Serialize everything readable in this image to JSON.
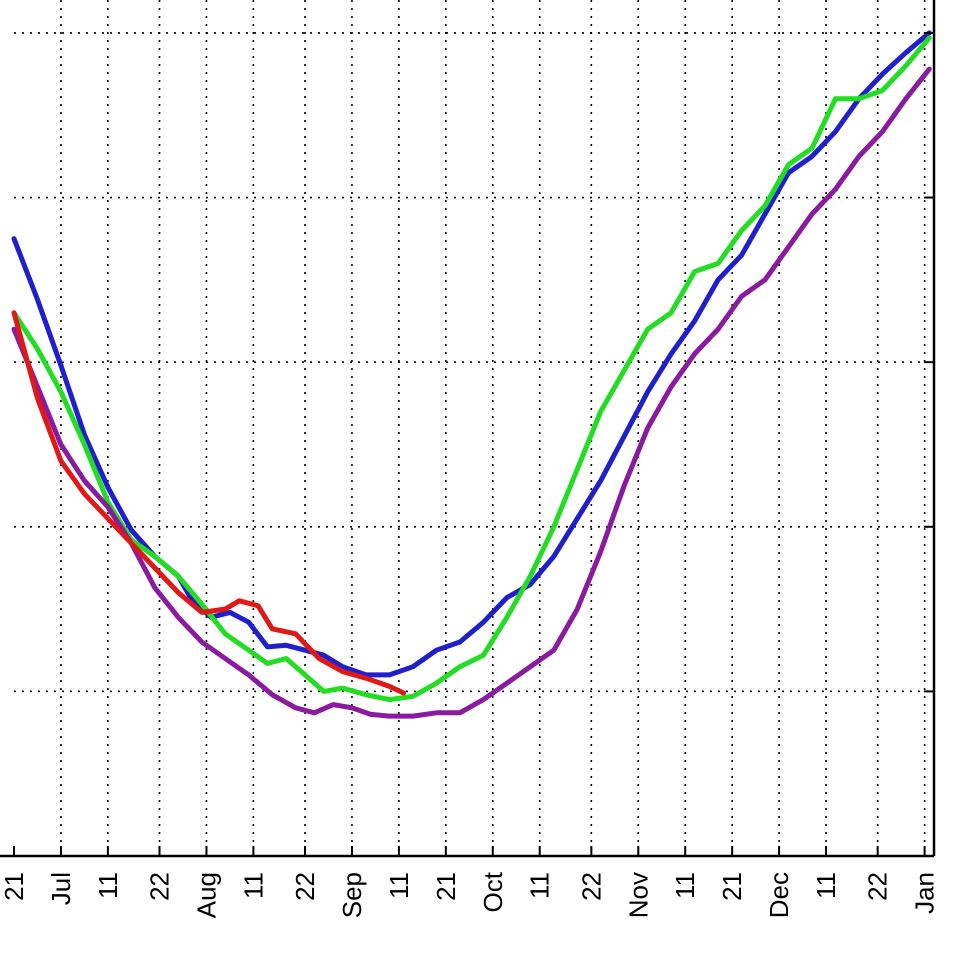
{
  "chart_data": {
    "type": "line",
    "title": "",
    "xlabel": "",
    "ylabel": "",
    "x_ticks": [
      {
        "day": 0,
        "label": "21"
      },
      {
        "day": 10,
        "label": "Jul"
      },
      {
        "day": 20,
        "label": "11"
      },
      {
        "day": 31,
        "label": "22"
      },
      {
        "day": 41,
        "label": "Aug"
      },
      {
        "day": 51,
        "label": "11"
      },
      {
        "day": 62,
        "label": "22"
      },
      {
        "day": 72,
        "label": "Sep"
      },
      {
        "day": 82,
        "label": "11"
      },
      {
        "day": 92,
        "label": "21"
      },
      {
        "day": 102,
        "label": "Oct"
      },
      {
        "day": 112,
        "label": "11"
      },
      {
        "day": 123,
        "label": "22"
      },
      {
        "day": 133,
        "label": "Nov"
      },
      {
        "day": 143,
        "label": "11"
      },
      {
        "day": 153,
        "label": "21"
      },
      {
        "day": 163,
        "label": "Dec"
      },
      {
        "day": 173,
        "label": "11"
      },
      {
        "day": 184,
        "label": "22"
      },
      {
        "day": 194,
        "label": "Jan"
      }
    ],
    "xlim": [
      0,
      196
    ],
    "ylim": [
      0,
      5.2
    ],
    "y_ticks": [
      1,
      2,
      3,
      4,
      5
    ],
    "grid": true,
    "series": [
      {
        "color": "#1f1fcc",
        "points": [
          [
            0,
            3.75
          ],
          [
            5,
            3.38
          ],
          [
            10,
            2.98
          ],
          [
            15,
            2.56
          ],
          [
            20,
            2.24
          ],
          [
            25,
            1.98
          ],
          [
            30,
            1.82
          ],
          [
            35,
            1.7
          ],
          [
            38,
            1.55
          ],
          [
            42,
            1.45
          ],
          [
            46,
            1.48
          ],
          [
            50,
            1.42
          ],
          [
            54,
            1.27
          ],
          [
            58,
            1.28
          ],
          [
            62,
            1.25
          ],
          [
            66,
            1.22
          ],
          [
            70,
            1.15
          ],
          [
            75,
            1.1
          ],
          [
            80,
            1.1
          ],
          [
            85,
            1.15
          ],
          [
            90,
            1.25
          ],
          [
            95,
            1.3
          ],
          [
            100,
            1.42
          ],
          [
            105,
            1.57
          ],
          [
            110,
            1.65
          ],
          [
            115,
            1.82
          ],
          [
            120,
            2.05
          ],
          [
            125,
            2.28
          ],
          [
            130,
            2.55
          ],
          [
            135,
            2.82
          ],
          [
            140,
            3.05
          ],
          [
            145,
            3.25
          ],
          [
            150,
            3.5
          ],
          [
            155,
            3.65
          ],
          [
            160,
            3.9
          ],
          [
            165,
            4.15
          ],
          [
            170,
            4.25
          ],
          [
            175,
            4.4
          ],
          [
            180,
            4.6
          ],
          [
            185,
            4.75
          ],
          [
            190,
            4.88
          ],
          [
            195,
            5.0
          ]
        ]
      },
      {
        "color": "#22dd22",
        "points": [
          [
            0,
            3.3
          ],
          [
            5,
            3.08
          ],
          [
            10,
            2.82
          ],
          [
            15,
            2.5
          ],
          [
            20,
            2.15
          ],
          [
            25,
            1.92
          ],
          [
            30,
            1.82
          ],
          [
            35,
            1.7
          ],
          [
            40,
            1.53
          ],
          [
            45,
            1.35
          ],
          [
            50,
            1.25
          ],
          [
            54,
            1.17
          ],
          [
            58,
            1.2
          ],
          [
            62,
            1.1
          ],
          [
            66,
            1.0
          ],
          [
            70,
            1.02
          ],
          [
            75,
            0.98
          ],
          [
            80,
            0.95
          ],
          [
            85,
            0.97
          ],
          [
            90,
            1.05
          ],
          [
            95,
            1.15
          ],
          [
            100,
            1.22
          ],
          [
            105,
            1.45
          ],
          [
            110,
            1.7
          ],
          [
            115,
            2.0
          ],
          [
            120,
            2.35
          ],
          [
            125,
            2.7
          ],
          [
            130,
            2.95
          ],
          [
            135,
            3.2
          ],
          [
            140,
            3.3
          ],
          [
            145,
            3.55
          ],
          [
            150,
            3.6
          ],
          [
            155,
            3.8
          ],
          [
            160,
            3.95
          ],
          [
            165,
            4.2
          ],
          [
            170,
            4.3
          ],
          [
            175,
            4.6
          ],
          [
            180,
            4.6
          ],
          [
            185,
            4.65
          ],
          [
            190,
            4.8
          ],
          [
            195,
            4.97
          ]
        ]
      },
      {
        "color": "#8a1aa0",
        "points": [
          [
            0,
            3.2
          ],
          [
            5,
            2.85
          ],
          [
            10,
            2.5
          ],
          [
            15,
            2.28
          ],
          [
            20,
            2.12
          ],
          [
            25,
            1.9
          ],
          [
            30,
            1.63
          ],
          [
            35,
            1.45
          ],
          [
            40,
            1.3
          ],
          [
            45,
            1.2
          ],
          [
            50,
            1.1
          ],
          [
            55,
            0.98
          ],
          [
            60,
            0.9
          ],
          [
            64,
            0.87
          ],
          [
            68,
            0.92
          ],
          [
            72,
            0.9
          ],
          [
            76,
            0.86
          ],
          [
            80,
            0.85
          ],
          [
            85,
            0.85
          ],
          [
            90,
            0.87
          ],
          [
            95,
            0.87
          ],
          [
            100,
            0.95
          ],
          [
            105,
            1.05
          ],
          [
            110,
            1.15
          ],
          [
            115,
            1.25
          ],
          [
            120,
            1.5
          ],
          [
            125,
            1.85
          ],
          [
            130,
            2.25
          ],
          [
            135,
            2.6
          ],
          [
            140,
            2.85
          ],
          [
            145,
            3.05
          ],
          [
            150,
            3.2
          ],
          [
            155,
            3.4
          ],
          [
            160,
            3.5
          ],
          [
            165,
            3.7
          ],
          [
            170,
            3.9
          ],
          [
            175,
            4.05
          ],
          [
            180,
            4.25
          ],
          [
            185,
            4.4
          ],
          [
            190,
            4.6
          ],
          [
            195,
            4.78
          ]
        ]
      },
      {
        "color": "#e01818",
        "points": [
          [
            0,
            3.3
          ],
          [
            5,
            2.78
          ],
          [
            10,
            2.4
          ],
          [
            15,
            2.2
          ],
          [
            20,
            2.05
          ],
          [
            25,
            1.9
          ],
          [
            30,
            1.75
          ],
          [
            35,
            1.6
          ],
          [
            40,
            1.48
          ],
          [
            45,
            1.5
          ],
          [
            48,
            1.55
          ],
          [
            52,
            1.52
          ],
          [
            55,
            1.38
          ],
          [
            60,
            1.35
          ],
          [
            65,
            1.2
          ],
          [
            70,
            1.12
          ],
          [
            75,
            1.08
          ],
          [
            80,
            1.03
          ],
          [
            83,
            0.99
          ]
        ]
      }
    ]
  }
}
